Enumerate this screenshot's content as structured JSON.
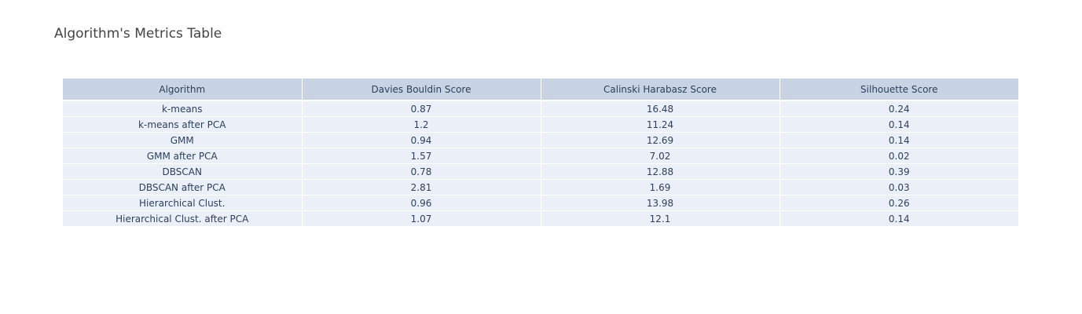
{
  "title": "Algorithm's Metrics Table",
  "colors": {
    "header_fill": "#c8d4e3",
    "cell_fill": "#ebf0f8",
    "text": "#2a3f5f",
    "title_text": "#444444"
  },
  "chart_data": {
    "type": "table",
    "title": "Algorithm's Metrics Table",
    "columns": [
      "Algorithm",
      "Davies Bouldin Score",
      "Calinski Harabasz Score",
      "Silhouette Score"
    ],
    "rows": [
      [
        "k-means",
        "0.87",
        "16.48",
        "0.24"
      ],
      [
        "k-means after PCA",
        "1.2",
        "11.24",
        "0.14"
      ],
      [
        "GMM",
        "0.94",
        "12.69",
        "0.14"
      ],
      [
        "GMM after PCA",
        "1.57",
        "7.02",
        "0.02"
      ],
      [
        "DBSCAN",
        "0.78",
        "12.88",
        "0.39"
      ],
      [
        "DBSCAN after PCA",
        "2.81",
        "1.69",
        "0.03"
      ],
      [
        "Hierarchical Clust.",
        "0.96",
        "13.98",
        "0.26"
      ],
      [
        "Hierarchical Clust. after PCA",
        "1.07",
        "12.1",
        "0.14"
      ]
    ]
  }
}
